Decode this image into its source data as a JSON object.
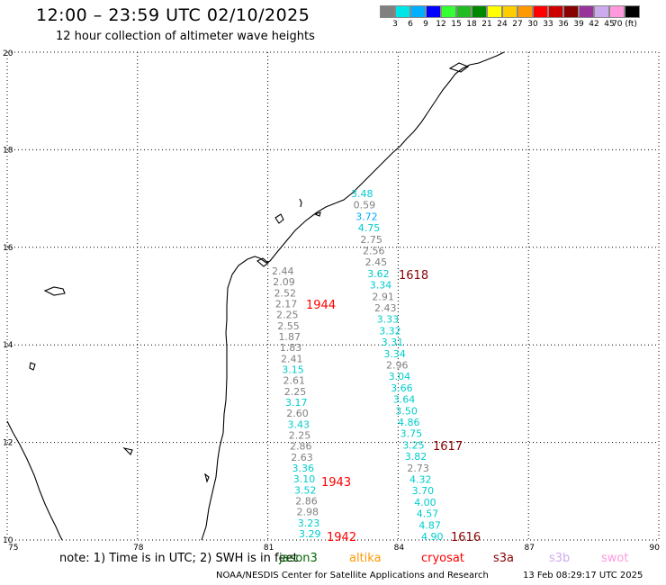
{
  "title": "12:00 – 23:59 UTC 02/10/2025",
  "subtitle": "12 hour collection of altimeter wave heights",
  "legend": {
    "colors": [
      "#808080",
      "#00e5e5",
      "#00b0ff",
      "#0000ff",
      "#33ff33",
      "#22bb22",
      "#008800",
      "#ffff00",
      "#ffcc00",
      "#ff9900",
      "#ff0000",
      "#cc0000",
      "#880000",
      "#993399",
      "#ccaaee",
      "#ff99dd",
      "#000000"
    ],
    "labels": [
      "3",
      "6",
      "9",
      "12",
      "15",
      "18",
      "21",
      "24",
      "27",
      "30",
      "33",
      "36",
      "39",
      "42",
      "45",
      "70 (ft)"
    ]
  },
  "map": {
    "lon_range": [
      75,
      90
    ],
    "lat_range": [
      10,
      20
    ],
    "lon_ticks": [
      "75",
      "78",
      "81",
      "84",
      "87",
      "90"
    ],
    "lat_ticks": [
      "10",
      "12",
      "14",
      "16",
      "18",
      "20"
    ],
    "grid": "dotted"
  },
  "tracks": [
    {
      "readings": [
        {
          "value": "2.44",
          "color": "#808080"
        },
        {
          "value": "2.09",
          "color": "#808080"
        },
        {
          "value": "2.52",
          "color": "#808080"
        },
        {
          "value": "2.17",
          "color": "#808080"
        },
        {
          "value": "2.25",
          "color": "#808080"
        },
        {
          "value": "2.55",
          "color": "#808080"
        },
        {
          "value": "1.87",
          "color": "#808080"
        },
        {
          "value": "1.83",
          "color": "#808080"
        },
        {
          "value": "2.41",
          "color": "#808080"
        },
        {
          "value": "3.15",
          "color": "#00cccc"
        },
        {
          "value": "2.61",
          "color": "#808080"
        },
        {
          "value": "2.25",
          "color": "#808080"
        },
        {
          "value": "3.17",
          "color": "#00cccc"
        },
        {
          "value": "2.60",
          "color": "#808080"
        },
        {
          "value": "3.43",
          "color": "#00cccc"
        },
        {
          "value": "2.25",
          "color": "#808080"
        },
        {
          "value": "2.86",
          "color": "#808080"
        },
        {
          "value": "2.63",
          "color": "#808080"
        },
        {
          "value": "3.36",
          "color": "#00cccc"
        },
        {
          "value": "3.10",
          "color": "#00cccc"
        },
        {
          "value": "3.52",
          "color": "#00cccc"
        },
        {
          "value": "2.86",
          "color": "#808080"
        },
        {
          "value": "2.98",
          "color": "#808080"
        },
        {
          "value": "3.23",
          "color": "#00cccc"
        },
        {
          "value": "3.29",
          "color": "#00cccc"
        }
      ]
    },
    {
      "readings": [
        {
          "value": "3.48",
          "color": "#00cccc"
        },
        {
          "value": "0.59",
          "color": "#808080"
        },
        {
          "value": "3.72",
          "color": "#00aaff"
        },
        {
          "value": "4.75",
          "color": "#00cccc"
        },
        {
          "value": "2.75",
          "color": "#808080"
        },
        {
          "value": "2.56",
          "color": "#808080"
        },
        {
          "value": "2.45",
          "color": "#808080"
        },
        {
          "value": "3.62",
          "color": "#00cccc"
        },
        {
          "value": "3.34",
          "color": "#00cccc"
        },
        {
          "value": "2.91",
          "color": "#808080"
        },
        {
          "value": "2.43",
          "color": "#808080"
        },
        {
          "value": "3.33",
          "color": "#00cccc"
        },
        {
          "value": "3.32",
          "color": "#00cccc"
        },
        {
          "value": "3.31",
          "color": "#00cccc"
        },
        {
          "value": "3.34",
          "color": "#00cccc"
        },
        {
          "value": "2.96",
          "color": "#808080"
        },
        {
          "value": "3.04",
          "color": "#00cccc"
        },
        {
          "value": "3.66",
          "color": "#00cccc"
        },
        {
          "value": "3.64",
          "color": "#00cccc"
        },
        {
          "value": "3.50",
          "color": "#00cccc"
        },
        {
          "value": "4.86",
          "color": "#00cccc"
        },
        {
          "value": "3.75",
          "color": "#00cccc"
        },
        {
          "value": "3.25",
          "color": "#00cccc"
        },
        {
          "value": "3.82",
          "color": "#00cccc"
        },
        {
          "value": "2.73",
          "color": "#808080"
        },
        {
          "value": "4.32",
          "color": "#00cccc"
        },
        {
          "value": "3.70",
          "color": "#00cccc"
        },
        {
          "value": "4.00",
          "color": "#00cccc"
        },
        {
          "value": "4.57",
          "color": "#00cccc"
        },
        {
          "value": "4.87",
          "color": "#00cccc"
        },
        {
          "value": "4.90",
          "color": "#00cccc"
        }
      ]
    }
  ],
  "pass_times": [
    {
      "label": "1944",
      "color": "#ff0000"
    },
    {
      "label": "1943",
      "color": "#ff0000"
    },
    {
      "label": "1942",
      "color": "#ff0000"
    },
    {
      "label": "1618",
      "color": "#880000"
    },
    {
      "label": "1617",
      "color": "#880000"
    },
    {
      "label": "1616",
      "color": "#880000"
    }
  ],
  "footer": {
    "note": "note:  1) Time is in UTC; 2) SWH is in feet",
    "satellites": [
      {
        "name": "jason3",
        "color": "#006600"
      },
      {
        "name": "altika",
        "color": "#ff9900"
      },
      {
        "name": "cryosat",
        "color": "#ff0000"
      },
      {
        "name": "s3a",
        "color": "#880000"
      },
      {
        "name": "s3b",
        "color": "#ccaaee"
      },
      {
        "name": "swot",
        "color": "#ff99dd"
      }
    ],
    "credit": "NOAA/NESDIS Center for Satellite Applications and Research",
    "timestamp": "13 Feb 08:29:17 UTC 2025"
  }
}
